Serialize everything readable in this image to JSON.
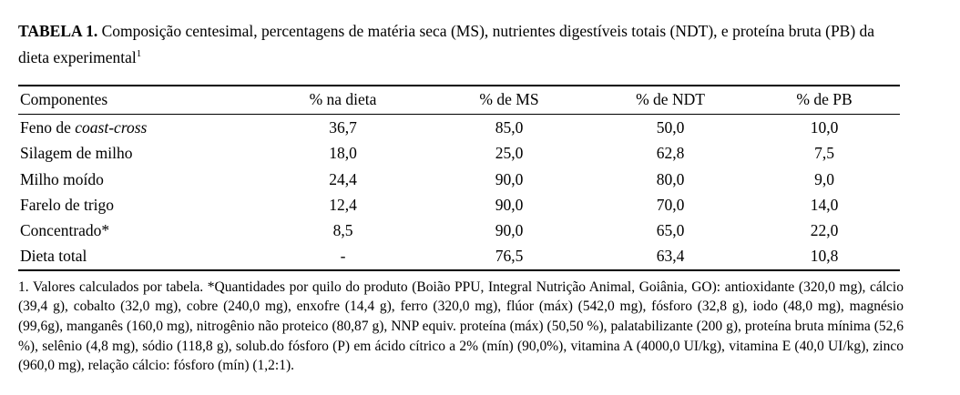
{
  "title": {
    "label": "TABELA 1.",
    "text": " Composição centesimal, percentagens de matéria seca (MS), nutrientes digestíveis totais (NDT), e proteína bruta (PB) da dieta experimental",
    "superscript": "1"
  },
  "table": {
    "headers": [
      "Componentes",
      "% na dieta",
      "% de MS",
      "% de NDT",
      "% de PB"
    ],
    "rows": [
      {
        "name": "Feno de ",
        "name_italic": "coast-cross",
        "values": [
          "36,7",
          "85,0",
          "50,0",
          "10,0"
        ]
      },
      {
        "name": "Silagem de milho",
        "name_italic": "",
        "values": [
          "18,0",
          "25,0",
          "62,8",
          "7,5"
        ]
      },
      {
        "name": "Milho moído",
        "name_italic": "",
        "values": [
          "24,4",
          "90,0",
          "80,0",
          "9,0"
        ]
      },
      {
        "name": "Farelo de trigo",
        "name_italic": "",
        "values": [
          "12,4",
          "90,0",
          "70,0",
          "14,0"
        ]
      },
      {
        "name": "Concentrado*",
        "name_italic": "",
        "values": [
          "8,5",
          "90,0",
          "65,0",
          "22,0"
        ]
      },
      {
        "name": "Dieta total",
        "name_italic": "",
        "values": [
          "-",
          "76,5",
          "63,4",
          "10,8"
        ]
      }
    ]
  },
  "footnote": "1. Valores calculados por tabela. *Quantidades por quilo do produto (Boião PPU, Integral Nutrição Animal, Goiânia, GO): antioxidante (320,0 mg), cálcio (39,4 g), cobalto (32,0 mg), cobre (240,0 mg), enxofre (14,4 g), ferro (320,0 mg), flúor (máx) (542,0 mg), fósforo (32,8 g), iodo (48,0 mg), magnésio (99,6g), manganês (160,0 mg), nitrogênio não proteico (80,87 g), NNP equiv. proteína (máx) (50,50 %), palatabilizante (200 g), proteína bruta mínima (52,6 %), selênio (4,8 mg), sódio (118,8 g), solub.do fósforo (P) em ácido cítrico a 2% (mín) (90,0%), vitamina A (4000,0 UI/kg), vitamina E (40,0 UI/kg), zinco (960,0 mg), relação cálcio: fósforo (mín) (1,2:1)."
}
